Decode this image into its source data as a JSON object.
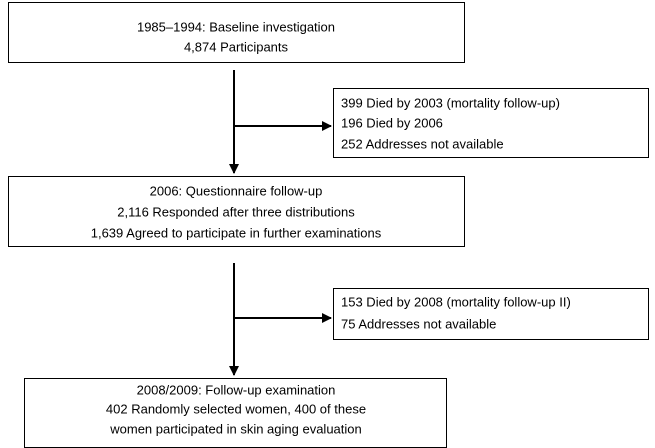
{
  "boxes": [
    {
      "lines": [
        "1985–1994: Baseline investigation",
        "4,874 Participants"
      ]
    },
    {
      "lines": [
        "2006: Questionnaire follow-up",
        "2,116 Responded after three distributions",
        "1,639 Agreed to participate in further examinations"
      ]
    },
    {
      "lines": [
        "2008/2009: Follow-up examination",
        "402 Randomly selected women, 400 of these",
        "women participated in skin aging evaluation"
      ]
    }
  ],
  "exclusions": [
    {
      "lines": [
        "399 Died by 2003 (mortality follow-up)",
        "196 Died by 2006",
        "252 Addresses not available"
      ]
    },
    {
      "lines": [
        "153 Died by 2008 (mortality follow-up II)",
        "75 Addresses not available"
      ]
    }
  ]
}
